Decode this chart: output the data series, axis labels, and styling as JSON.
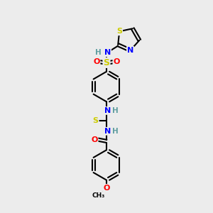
{
  "bg_color": "#ececec",
  "bond_color": "#000000",
  "bond_width": 1.5,
  "atom_colors": {
    "S": "#cccc00",
    "O": "#ff0000",
    "N": "#0000ff",
    "C": "#000000",
    "H": "#5f9ea0"
  },
  "font_size": 8,
  "fig_size": [
    3.0,
    3.0
  ],
  "dpi": 100,
  "xlim": [
    0,
    10
  ],
  "ylim": [
    0,
    10
  ]
}
